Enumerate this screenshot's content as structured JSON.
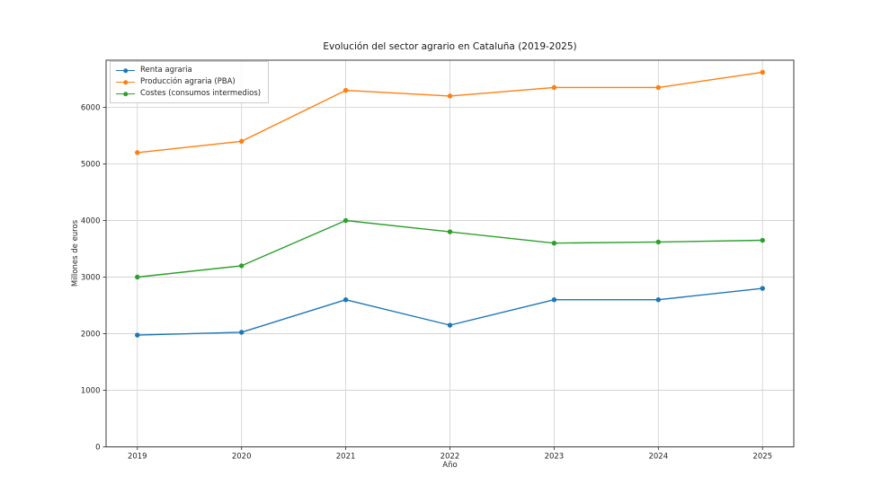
{
  "chart_data": {
    "type": "line",
    "title": "Evolución del sector agrario en Cataluña (2019-2025)",
    "xlabel": "Año",
    "ylabel": "Millones de euros",
    "x": [
      2019,
      2020,
      2021,
      2022,
      2023,
      2024,
      2025
    ],
    "series": [
      {
        "name": "Renta agraria",
        "color": "#1f77b4",
        "values": [
          1975,
          2025,
          2600,
          2150,
          2600,
          2600,
          2800
        ]
      },
      {
        "name": "Producción agraria (PBA)",
        "color": "#ff7f0e",
        "values": [
          5200,
          5400,
          6300,
          6200,
          6350,
          6350,
          6620
        ]
      },
      {
        "name": "Costes (consumos intermedios)",
        "color": "#2ca02c",
        "values": [
          3000,
          3200,
          4000,
          3800,
          3600,
          3620,
          3650
        ]
      }
    ],
    "yticks": [
      0,
      1000,
      2000,
      3000,
      4000,
      5000,
      6000
    ],
    "ylim": [
      0,
      6833
    ],
    "xlim": [
      2018.7,
      2025.3
    ],
    "grid": true,
    "legend_position": "upper left",
    "style": {
      "grid_color": "#d4d4d4",
      "spine_color": "#3b3b3b",
      "tick_color": "#3b3b3b",
      "text_color": "#262626",
      "background": "#ffffff",
      "legend_border": "#cccccc"
    }
  }
}
